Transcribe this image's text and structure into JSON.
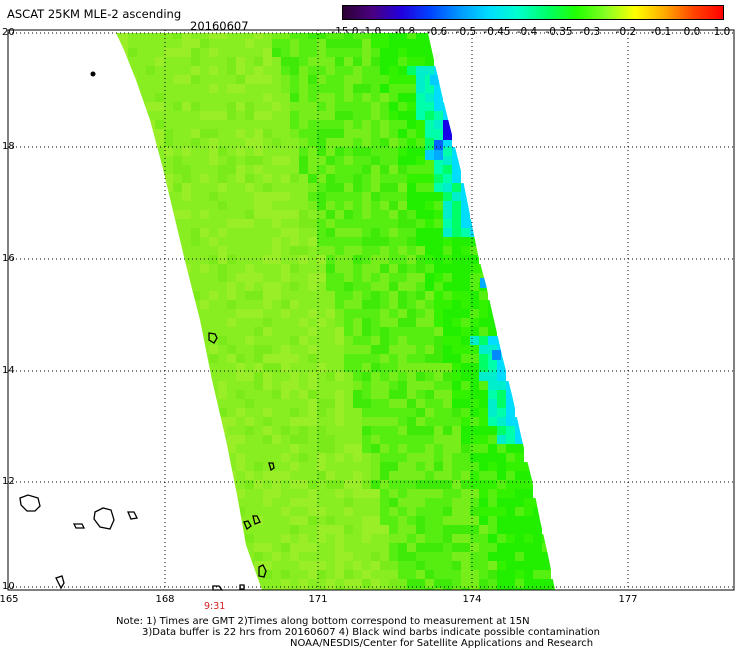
{
  "header": {
    "title": "ASCAT 25KM MLE-2 ascending",
    "date": "20160607"
  },
  "colorbar": {
    "ticks": [
      "-15.0",
      "-1.0",
      "-0.8",
      "-0.6",
      "-0.5",
      "-0.45",
      "-0.4",
      "-0.35",
      "-0.3",
      "-0.2",
      "-0.1",
      "0.0",
      "1.0"
    ],
    "colors": [
      "#2b0033",
      "#4a0080",
      "#2200dd",
      "#0044ff",
      "#0099ff",
      "#00ddff",
      "#00ffcc",
      "#00ff66",
      "#22ff00",
      "#88ff22",
      "#ffff00",
      "#ffaa00",
      "#ff4400",
      "#ff0000"
    ]
  },
  "axes": {
    "lat_labels": [
      "20",
      "18",
      "16",
      "14",
      "12",
      "10"
    ],
    "lon_labels": [
      "165",
      "168",
      "171",
      "174",
      "177"
    ]
  },
  "time_label": "9:31",
  "notes": {
    "line1": "Note: 1) Times are GMT 2)Times along bottom correspond to measurement at 15N",
    "line2": "3)Data buffer is 22 hrs from 20160607 4) Black wind barbs indicate possible contamination",
    "line3": "NOAA/NESDIS/Center for Satellite Applications and Research"
  },
  "chart_data": {
    "type": "heatmap",
    "title": "ASCAT 25KM MLE-2 ascending",
    "x_range": [
      165,
      179.0
    ],
    "y_range": [
      10,
      20
    ],
    "dominant_value_range": [
      -0.35,
      -0.2
    ],
    "min_value_region": "near 173.5E, 18N (about -0.6)"
  }
}
